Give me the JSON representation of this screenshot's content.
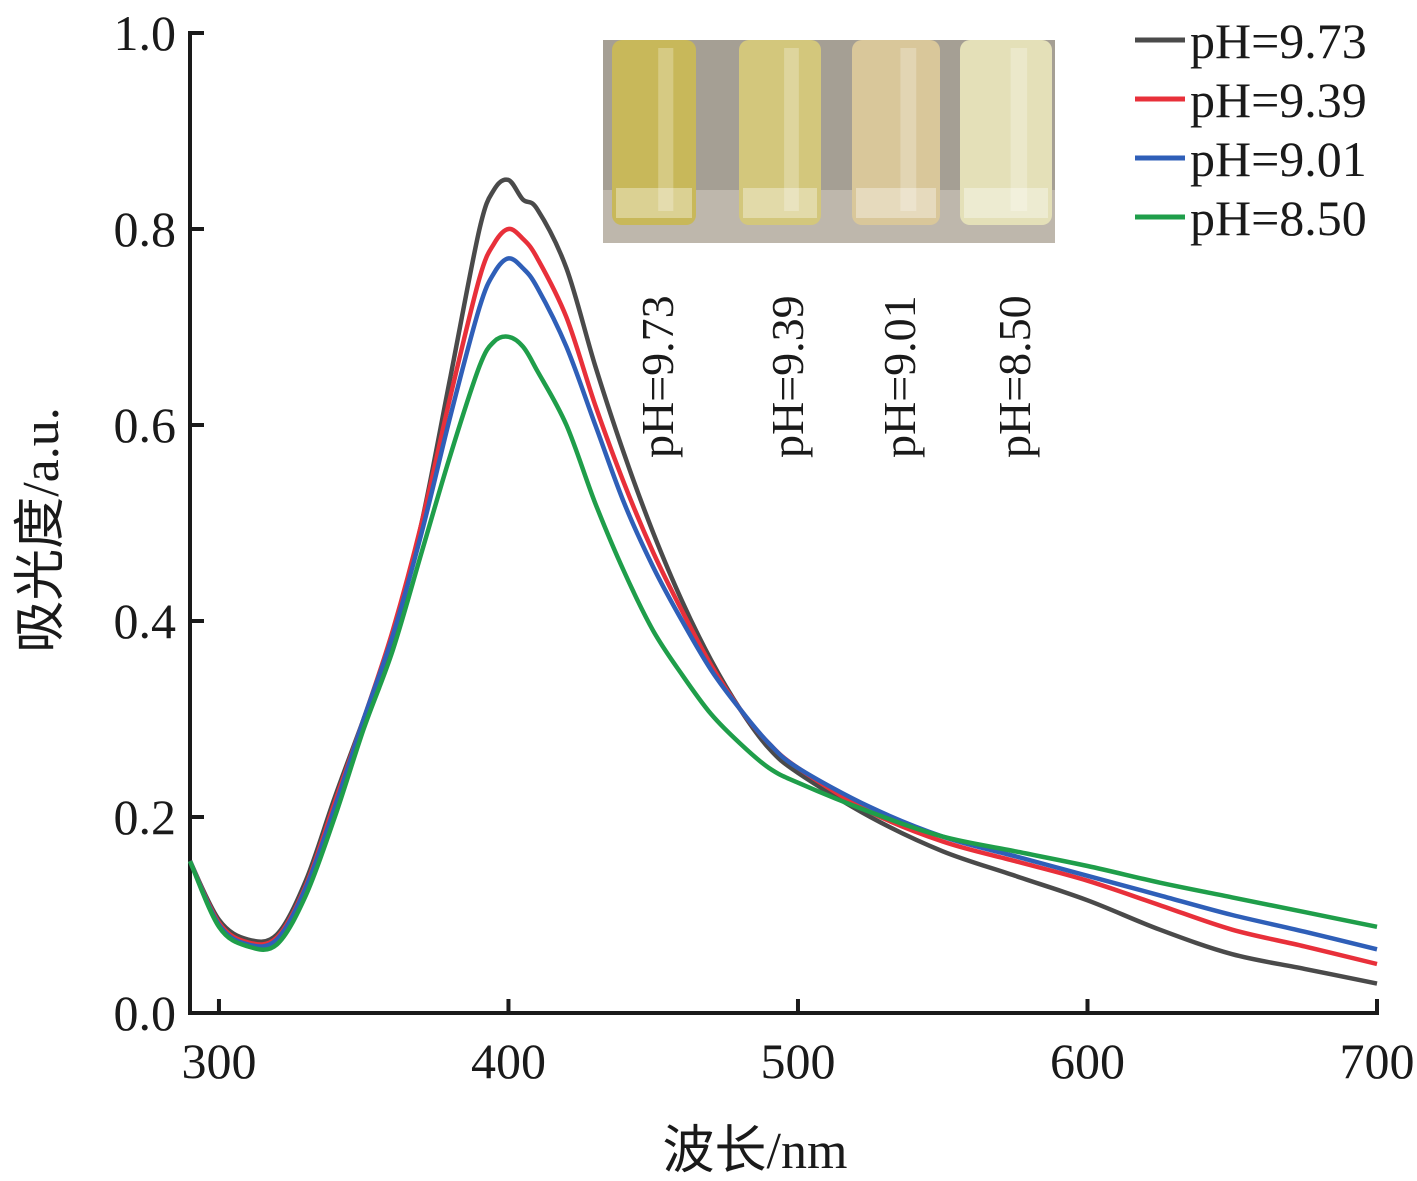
{
  "chart_data": {
    "type": "line",
    "xlabel": "波长/nm",
    "ylabel": "吸光度/a.u.",
    "xlim": [
      290,
      700
    ],
    "ylim": [
      0,
      1.0
    ],
    "x_ticks": [
      300,
      400,
      500,
      600,
      700
    ],
    "y_ticks": [
      0.0,
      0.2,
      0.4,
      0.6,
      0.8,
      1.0
    ],
    "x_tick_labels": [
      "300",
      "400",
      "500",
      "600",
      "700"
    ],
    "y_tick_labels": [
      "0.0",
      "0.2",
      "0.4",
      "0.6",
      "0.8",
      "1.0"
    ],
    "grid": false,
    "legend_position": "top-right",
    "series": [
      {
        "name": "pH=9.73",
        "color": "#4a4a4a",
        "x": [
          290,
          300,
          310,
          320,
          330,
          340,
          350,
          360,
          370,
          380,
          390,
          395,
          400,
          405,
          410,
          420,
          430,
          440,
          450,
          460,
          470,
          480,
          490,
          500,
          525,
          550,
          575,
          600,
          625,
          650,
          675,
          700
        ],
        "y": [
          0.155,
          0.095,
          0.075,
          0.08,
          0.135,
          0.22,
          0.3,
          0.38,
          0.5,
          0.65,
          0.8,
          0.84,
          0.85,
          0.83,
          0.82,
          0.76,
          0.66,
          0.57,
          0.49,
          0.42,
          0.36,
          0.31,
          0.27,
          0.245,
          0.2,
          0.165,
          0.14,
          0.115,
          0.085,
          0.06,
          0.045,
          0.03
        ]
      },
      {
        "name": "pH=9.39",
        "color": "#e8303a",
        "x": [
          290,
          300,
          310,
          320,
          330,
          340,
          350,
          360,
          370,
          380,
          390,
          395,
          400,
          405,
          410,
          420,
          430,
          440,
          450,
          460,
          470,
          480,
          490,
          500,
          525,
          550,
          575,
          600,
          625,
          650,
          675,
          700
        ],
        "y": [
          0.155,
          0.092,
          0.072,
          0.077,
          0.13,
          0.215,
          0.3,
          0.39,
          0.5,
          0.63,
          0.75,
          0.785,
          0.8,
          0.79,
          0.77,
          0.71,
          0.62,
          0.54,
          0.47,
          0.41,
          0.355,
          0.31,
          0.275,
          0.25,
          0.205,
          0.175,
          0.155,
          0.135,
          0.11,
          0.085,
          0.068,
          0.05
        ]
      },
      {
        "name": "pH=9.01",
        "color": "#2f5fb8",
        "x": [
          290,
          300,
          310,
          320,
          330,
          340,
          350,
          360,
          370,
          380,
          390,
          395,
          400,
          405,
          410,
          420,
          430,
          440,
          450,
          460,
          470,
          480,
          490,
          500,
          525,
          550,
          575,
          600,
          625,
          650,
          675,
          700
        ],
        "y": [
          0.155,
          0.09,
          0.07,
          0.075,
          0.128,
          0.21,
          0.3,
          0.385,
          0.49,
          0.61,
          0.72,
          0.755,
          0.77,
          0.76,
          0.74,
          0.68,
          0.6,
          0.52,
          0.455,
          0.4,
          0.35,
          0.31,
          0.275,
          0.25,
          0.21,
          0.18,
          0.16,
          0.14,
          0.12,
          0.1,
          0.083,
          0.065
        ]
      },
      {
        "name": "pH=8.50",
        "color": "#1f9e4a",
        "x": [
          290,
          300,
          310,
          320,
          330,
          340,
          350,
          360,
          370,
          380,
          390,
          395,
          400,
          405,
          410,
          420,
          430,
          440,
          450,
          460,
          470,
          480,
          490,
          500,
          525,
          550,
          575,
          600,
          625,
          650,
          675,
          700
        ],
        "y": [
          0.155,
          0.088,
          0.068,
          0.07,
          0.12,
          0.2,
          0.29,
          0.37,
          0.47,
          0.57,
          0.66,
          0.685,
          0.69,
          0.68,
          0.655,
          0.6,
          0.52,
          0.45,
          0.39,
          0.345,
          0.305,
          0.275,
          0.25,
          0.235,
          0.205,
          0.18,
          0.165,
          0.15,
          0.133,
          0.118,
          0.103,
          0.088
        ]
      }
    ],
    "inset": {
      "vial_labels": [
        "pH=9.73",
        "pH=9.39",
        "pH=9.01",
        "pH=8.50"
      ],
      "vial_colors": [
        "#c8b85a",
        "#d3c77c",
        "#d9c79a",
        "#e4e0b8"
      ],
      "background_color": "#a59f94"
    }
  }
}
